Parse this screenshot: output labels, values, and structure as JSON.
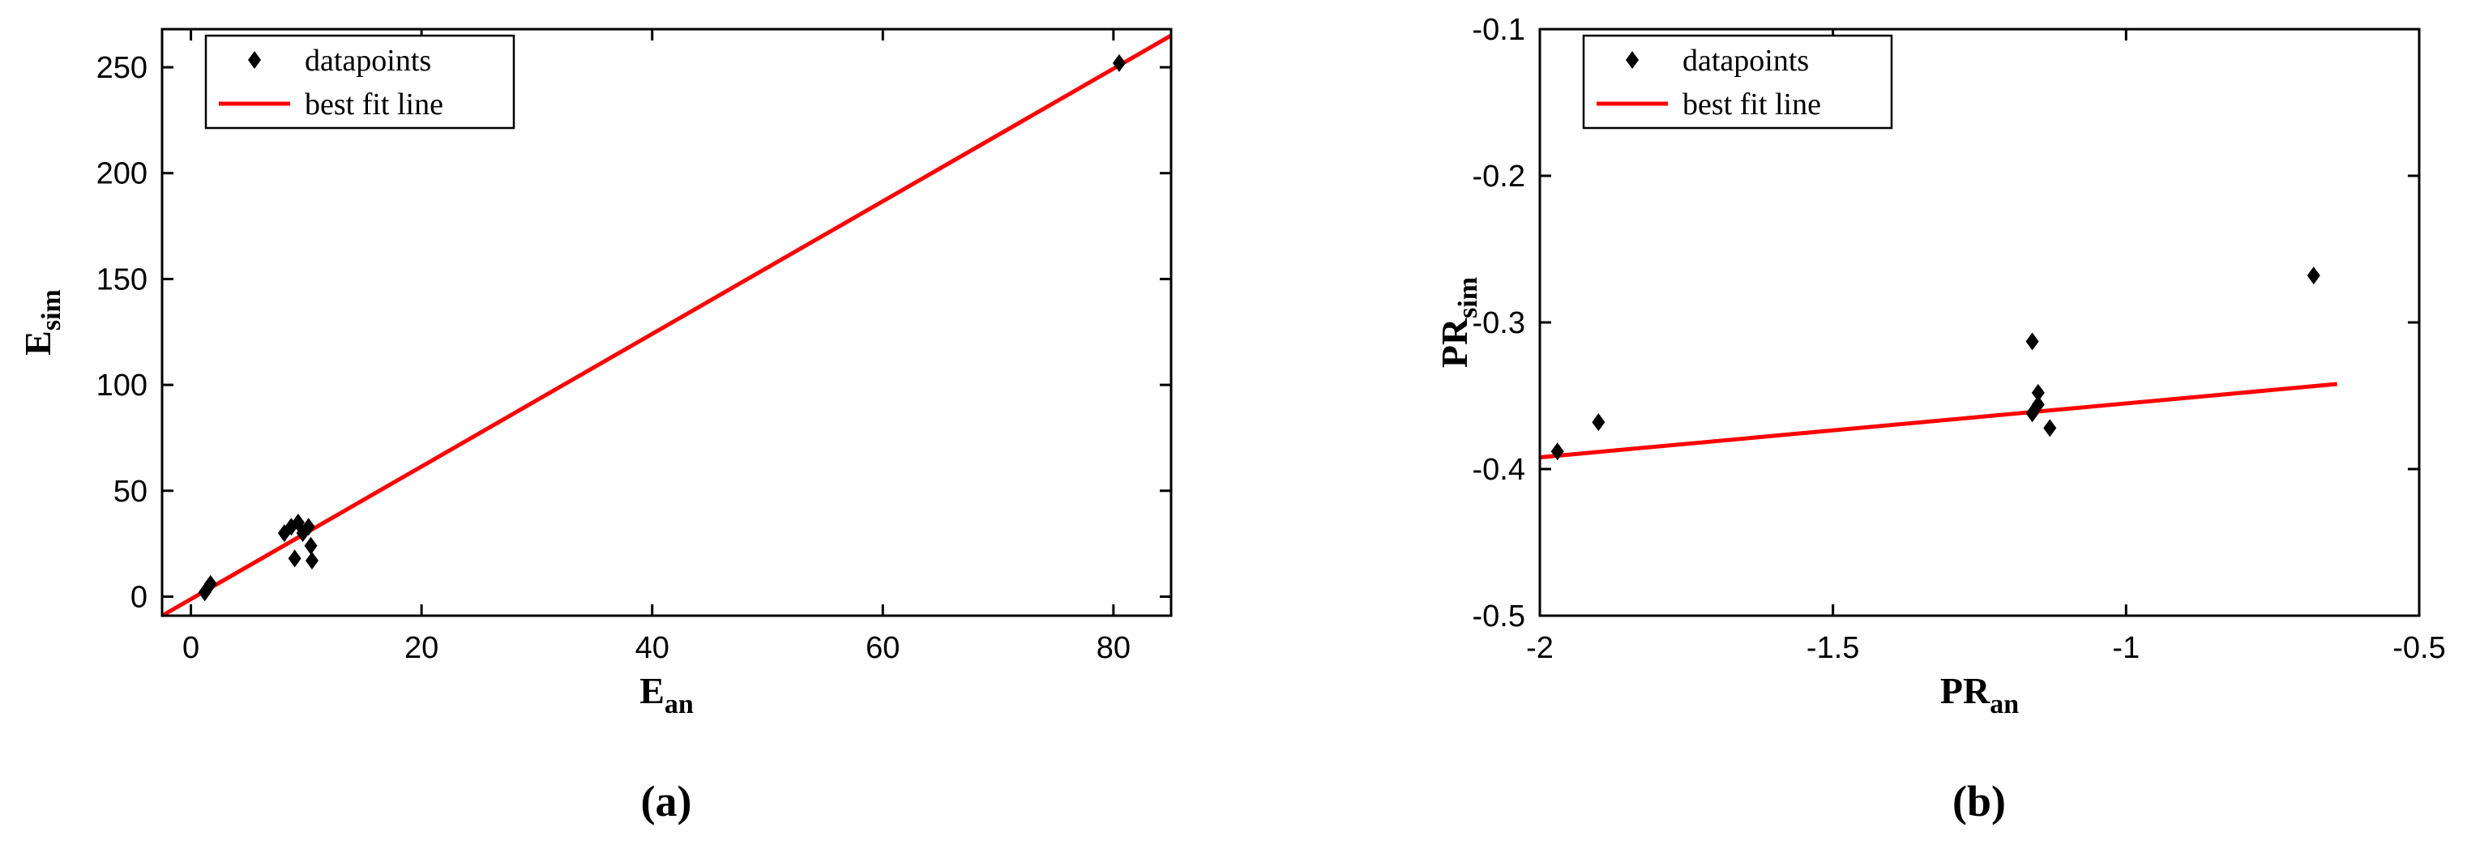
{
  "figure": {
    "background": "#ffffff",
    "point_marker": "diamond-icon"
  },
  "chart_data": [
    {
      "id": "a",
      "type": "scatter",
      "caption": "(a)",
      "xlabel": {
        "text": "E",
        "sub": "an"
      },
      "ylabel": {
        "text": "E",
        "sub": "sim"
      },
      "xlim": [
        -2.5,
        85
      ],
      "ylim": [
        -9,
        268
      ],
      "xticks": [
        0,
        20,
        40,
        60,
        80
      ],
      "yticks": [
        0,
        50,
        100,
        150,
        200,
        250
      ],
      "grid": false,
      "legend_position": "top-left",
      "legend": [
        {
          "label": "datapoints",
          "marker": "diamond",
          "color": "#000000"
        },
        {
          "label": "best fit line",
          "marker": "line",
          "color": "#ff0000"
        }
      ],
      "points": [
        [
          1.2,
          2
        ],
        [
          1.7,
          6
        ],
        [
          8.1,
          30
        ],
        [
          8.7,
          33
        ],
        [
          9.0,
          18
        ],
        [
          9.3,
          35
        ],
        [
          9.7,
          30
        ],
        [
          10.2,
          33
        ],
        [
          10.4,
          24
        ],
        [
          10.5,
          17
        ],
        [
          80.5,
          252
        ]
      ],
      "fit_line": {
        "x1": -2.5,
        "y1": -9,
        "x2": 85,
        "y2": 265
      },
      "point_color": "#000000",
      "line_color": "#ff0000"
    },
    {
      "id": "b",
      "type": "scatter",
      "caption": "(b)",
      "xlabel": {
        "text": "PR",
        "sub": "an"
      },
      "ylabel": {
        "text": "PR",
        "sub": "sim"
      },
      "xlim": [
        -2,
        -0.5
      ],
      "ylim": [
        -0.5,
        -0.1
      ],
      "xticks": [
        -2,
        -1.5,
        -1,
        -0.5
      ],
      "yticks": [
        -0.5,
        -0.4,
        -0.3,
        -0.2,
        -0.1
      ],
      "grid": false,
      "legend_position": "top-left",
      "legend": [
        {
          "label": "datapoints",
          "marker": "diamond",
          "color": "#000000"
        },
        {
          "label": "best fit line",
          "marker": "line",
          "color": "#ff0000"
        }
      ],
      "points": [
        [
          -1.97,
          -0.388
        ],
        [
          -1.9,
          -0.368
        ],
        [
          -1.16,
          -0.313
        ],
        [
          -1.15,
          -0.348
        ],
        [
          -1.15,
          -0.356
        ],
        [
          -1.16,
          -0.362
        ],
        [
          -1.13,
          -0.372
        ],
        [
          -0.68,
          -0.268
        ]
      ],
      "fit_line": {
        "x1": -2.0,
        "y1": -0.392,
        "x2": -0.64,
        "y2": -0.342
      },
      "point_color": "#000000",
      "line_color": "#ff0000"
    }
  ]
}
